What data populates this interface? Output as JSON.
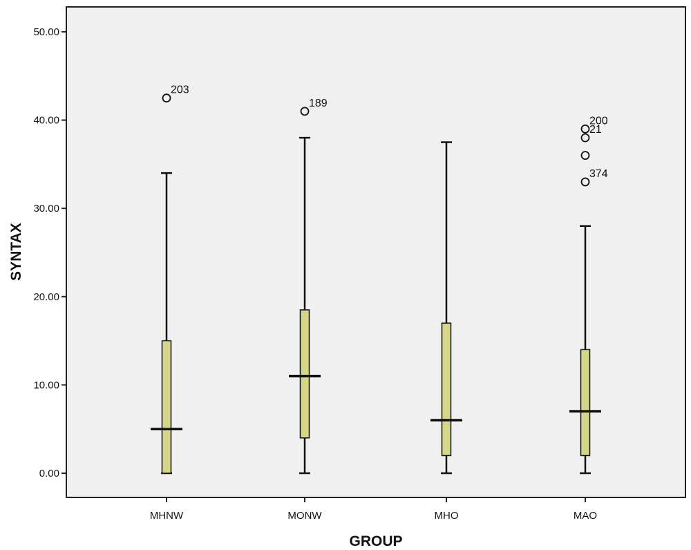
{
  "chart_data": {
    "type": "boxplot",
    "title": "",
    "xlabel": "GROUP",
    "ylabel": "SYNTAX",
    "ylim": [
      -2.8,
      52.5
    ],
    "yticks": [
      0,
      10,
      20,
      30,
      40,
      50
    ],
    "ytick_labels": [
      "0.00",
      "10.00",
      "20.00",
      "30.00",
      "40.00",
      "50.00"
    ],
    "grid": false,
    "box_color": "#d6d68a",
    "plot_background": "#f0f0f0",
    "categories": [
      "MHNW",
      "MONW",
      "MHO",
      "MAO"
    ],
    "boxes": [
      {
        "category": "MHNW",
        "whisker_low": 0,
        "q1": 0,
        "median": 5,
        "q3": 15,
        "whisker_high": 34,
        "outliers": [
          {
            "value": 42.5,
            "label": "203"
          }
        ]
      },
      {
        "category": "MONW",
        "whisker_low": 0,
        "q1": 4,
        "median": 11,
        "q3": 18.5,
        "whisker_high": 38,
        "outliers": [
          {
            "value": 41,
            "label": "189"
          }
        ]
      },
      {
        "category": "MHO",
        "whisker_low": 0,
        "q1": 2,
        "median": 6,
        "q3": 17,
        "whisker_high": 37.5,
        "outliers": []
      },
      {
        "category": "MAO",
        "whisker_low": 0,
        "q1": 2,
        "median": 7,
        "q3": 14,
        "whisker_high": 28,
        "outliers": [
          {
            "value": 39,
            "label": "200"
          },
          {
            "value": 38,
            "label": "21"
          },
          {
            "value": 36,
            "label": ""
          },
          {
            "value": 33,
            "label": "374"
          }
        ]
      }
    ]
  }
}
